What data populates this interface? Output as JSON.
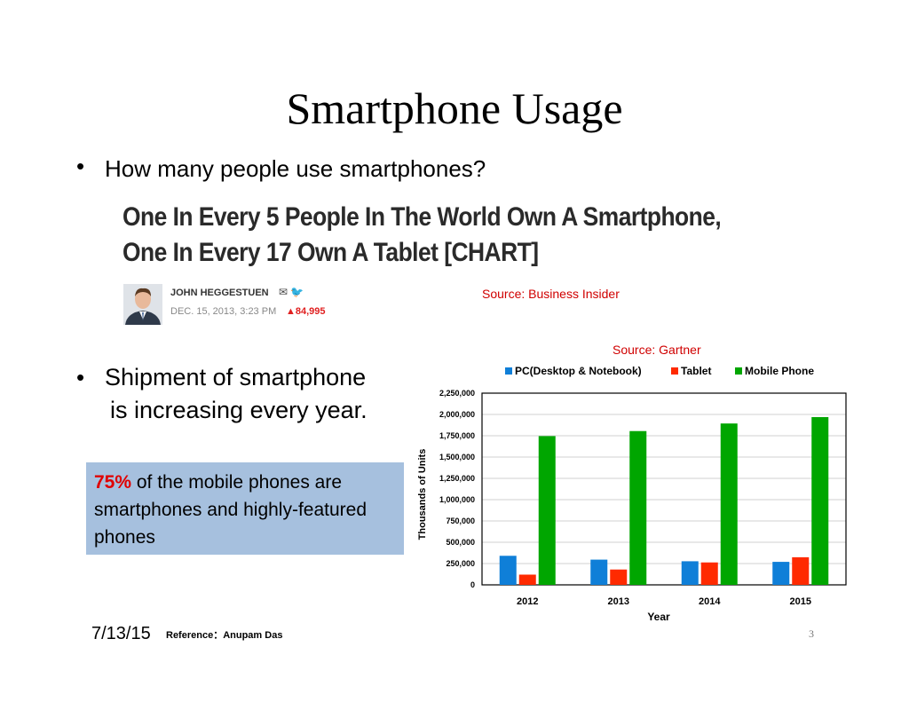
{
  "slide": {
    "title": "Smartphone Usage",
    "bullet1": "How many people use smartphones?",
    "bullet_symbol": "•",
    "bullet2_line1": "Shipment of smartphone",
    "bullet2_line2": "is increasing every year."
  },
  "article": {
    "headline_line1": "One In Every 5 People In The World Own A Smartphone,",
    "headline_line2": "One In Every 17 Own A Tablet [CHART]",
    "author": "JOHN HEGGESTUEN",
    "date": "DEC. 15, 2013, 3:23 PM",
    "views": "84,995",
    "source": "Source: Business Insider"
  },
  "callout": {
    "percent": "75%",
    "text": " of the mobile phones are smartphones and highly-featured phones"
  },
  "chart_source": "Source: Gartner",
  "chart_data": {
    "type": "bar",
    "title": "",
    "categories": [
      "2012",
      "2013",
      "2014",
      "2015"
    ],
    "series": [
      {
        "name": "PC(Desktop & Notebook)",
        "values": [
          341000,
          296000,
          277000,
          270000
        ],
        "color": "#0f7fd8"
      },
      {
        "name": "Tablet",
        "values": [
          120000,
          180000,
          263000,
          324000
        ],
        "color": "#ff2a00"
      },
      {
        "name": "Mobile Phone",
        "values": [
          1746000,
          1805000,
          1894000,
          1969000
        ],
        "color": "#00a600"
      }
    ],
    "xlabel": "Year",
    "ylabel": "Thousands of Units",
    "ylim": [
      0,
      2250000
    ],
    "yticks": [
      "0",
      "250,000",
      "500,000",
      "750,000",
      "1,000,000",
      "1,250,000",
      "1,500,000",
      "1,750,000",
      "2,000,000",
      "2,250,000"
    ],
    "ytick_values": [
      0,
      250000,
      500000,
      750000,
      1000000,
      1250000,
      1500000,
      1750000,
      2000000,
      2250000
    ],
    "grid": true,
    "legend_position": "top"
  },
  "footer": {
    "date": "7/13/15",
    "reference": "Reference：Anupam Das",
    "page": "3"
  }
}
